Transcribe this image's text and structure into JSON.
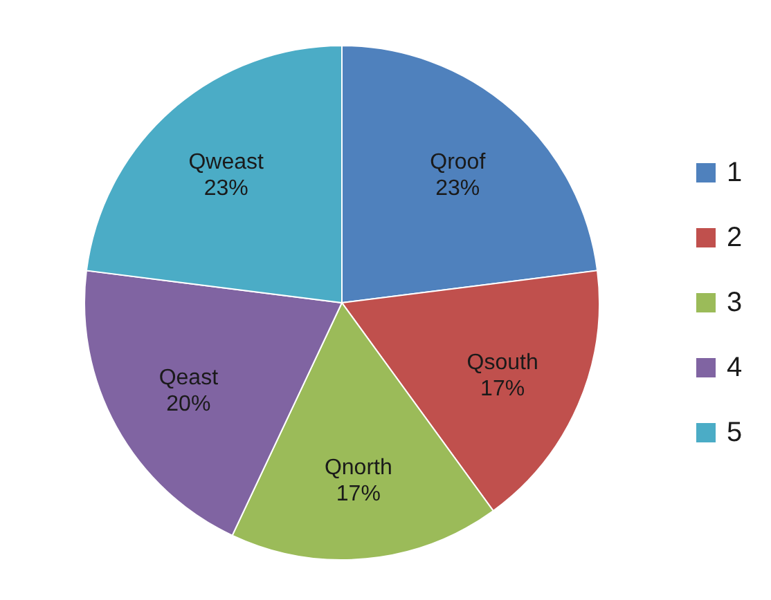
{
  "chart_data": {
    "type": "pie",
    "categories": [
      "1",
      "2",
      "3",
      "4",
      "5"
    ],
    "values": [
      23,
      17,
      17,
      20,
      23
    ],
    "colors": [
      "#4f81bd",
      "#c0504d",
      "#9bbb59",
      "#8064a2",
      "#4bacc6"
    ],
    "value_labels": [
      "Qroof 23%",
      "Qsouth 17%",
      "Qnorth 17%",
      "Qeast 20%",
      "Qweast 23%"
    ],
    "legend": "right"
  }
}
